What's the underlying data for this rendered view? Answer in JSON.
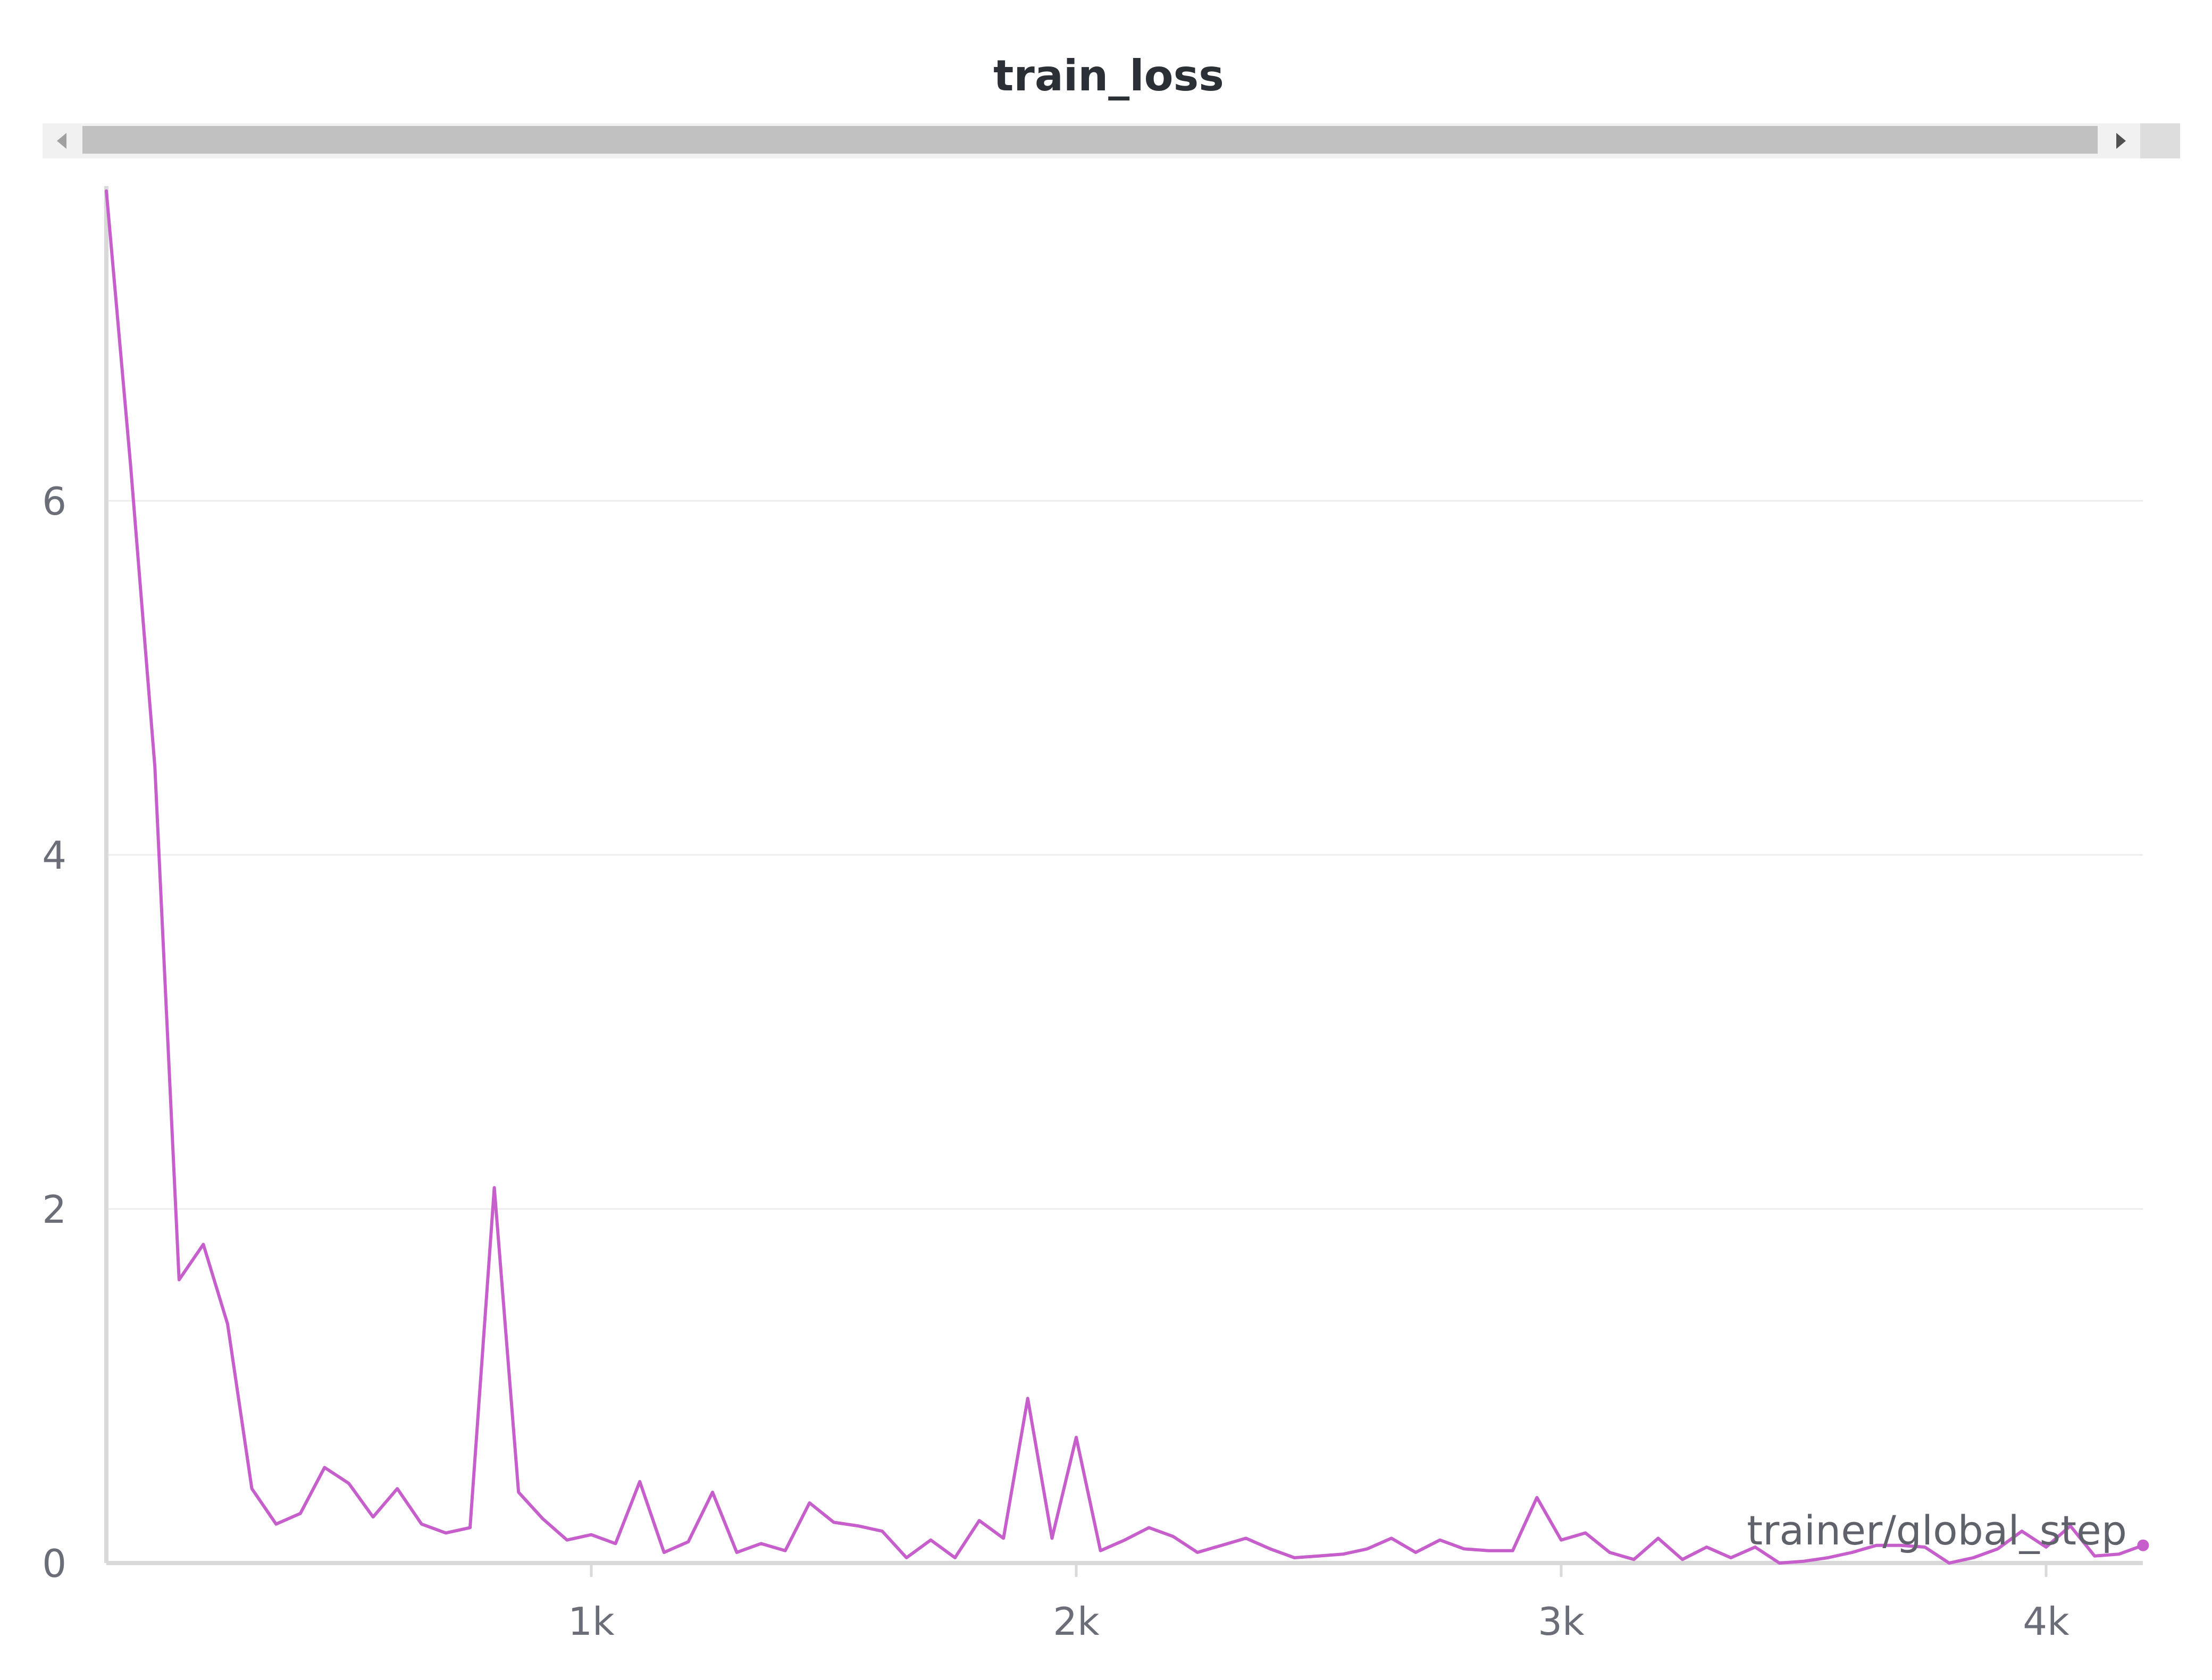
{
  "chart_data": {
    "type": "line",
    "title": "train_loss",
    "xlabel": "trainer/global_step",
    "ylabel": "",
    "xlim": [
      0,
      4240
    ],
    "ylim": [
      0,
      7.8
    ],
    "x_ticks": [
      1000,
      2000,
      3000,
      4000
    ],
    "x_tick_labels": [
      "1k",
      "2k",
      "3k",
      "4k"
    ],
    "y_ticks": [
      0,
      2,
      4,
      6
    ],
    "y_tick_labels": [
      "0",
      "2",
      "4",
      "6"
    ],
    "grid": "horizontal",
    "legend": "none",
    "line_color": "#c65ecb",
    "series": [
      {
        "points": [
          [
            0,
            7.75
          ],
          [
            50,
            6.2
          ],
          [
            100,
            4.5
          ],
          [
            150,
            1.6
          ],
          [
            200,
            1.8
          ],
          [
            250,
            1.35
          ],
          [
            300,
            0.42
          ],
          [
            350,
            0.22
          ],
          [
            400,
            0.28
          ],
          [
            450,
            0.54
          ],
          [
            500,
            0.45
          ],
          [
            550,
            0.26
          ],
          [
            600,
            0.42
          ],
          [
            650,
            0.22
          ],
          [
            700,
            0.17
          ],
          [
            750,
            0.2
          ],
          [
            800,
            2.12
          ],
          [
            850,
            0.4
          ],
          [
            900,
            0.25
          ],
          [
            950,
            0.13
          ],
          [
            1000,
            0.16
          ],
          [
            1050,
            0.11
          ],
          [
            1100,
            0.46
          ],
          [
            1150,
            0.06
          ],
          [
            1200,
            0.12
          ],
          [
            1250,
            0.4
          ],
          [
            1300,
            0.06
          ],
          [
            1350,
            0.11
          ],
          [
            1400,
            0.07
          ],
          [
            1450,
            0.34
          ],
          [
            1500,
            0.23
          ],
          [
            1550,
            0.21
          ],
          [
            1600,
            0.18
          ],
          [
            1650,
            0.03
          ],
          [
            1700,
            0.13
          ],
          [
            1750,
            0.03
          ],
          [
            1800,
            0.24
          ],
          [
            1850,
            0.14
          ],
          [
            1900,
            0.93
          ],
          [
            1950,
            0.14
          ],
          [
            2000,
            0.71
          ],
          [
            2050,
            0.07
          ],
          [
            2100,
            0.13
          ],
          [
            2150,
            0.2
          ],
          [
            2200,
            0.15
          ],
          [
            2250,
            0.06
          ],
          [
            2300,
            0.1
          ],
          [
            2350,
            0.14
          ],
          [
            2400,
            0.08
          ],
          [
            2450,
            0.03
          ],
          [
            2500,
            0.04
          ],
          [
            2550,
            0.05
          ],
          [
            2600,
            0.08
          ],
          [
            2650,
            0.14
          ],
          [
            2700,
            0.06
          ],
          [
            2750,
            0.13
          ],
          [
            2800,
            0.08
          ],
          [
            2850,
            0.07
          ],
          [
            2900,
            0.07
          ],
          [
            2950,
            0.37
          ],
          [
            3000,
            0.13
          ],
          [
            3050,
            0.17
          ],
          [
            3100,
            0.06
          ],
          [
            3150,
            0.02
          ],
          [
            3200,
            0.14
          ],
          [
            3250,
            0.02
          ],
          [
            3300,
            0.09
          ],
          [
            3350,
            0.03
          ],
          [
            3400,
            0.09
          ],
          [
            3450,
            0.0
          ],
          [
            3500,
            0.01
          ],
          [
            3550,
            0.03
          ],
          [
            3600,
            0.06
          ],
          [
            3650,
            0.1
          ],
          [
            3700,
            0.1
          ],
          [
            3750,
            0.09
          ],
          [
            3800,
            0.0
          ],
          [
            3850,
            0.03
          ],
          [
            3900,
            0.08
          ],
          [
            3950,
            0.18
          ],
          [
            4000,
            0.09
          ],
          [
            4050,
            0.21
          ],
          [
            4100,
            0.04
          ],
          [
            4150,
            0.05
          ],
          [
            4200,
            0.1
          ]
        ]
      }
    ]
  }
}
